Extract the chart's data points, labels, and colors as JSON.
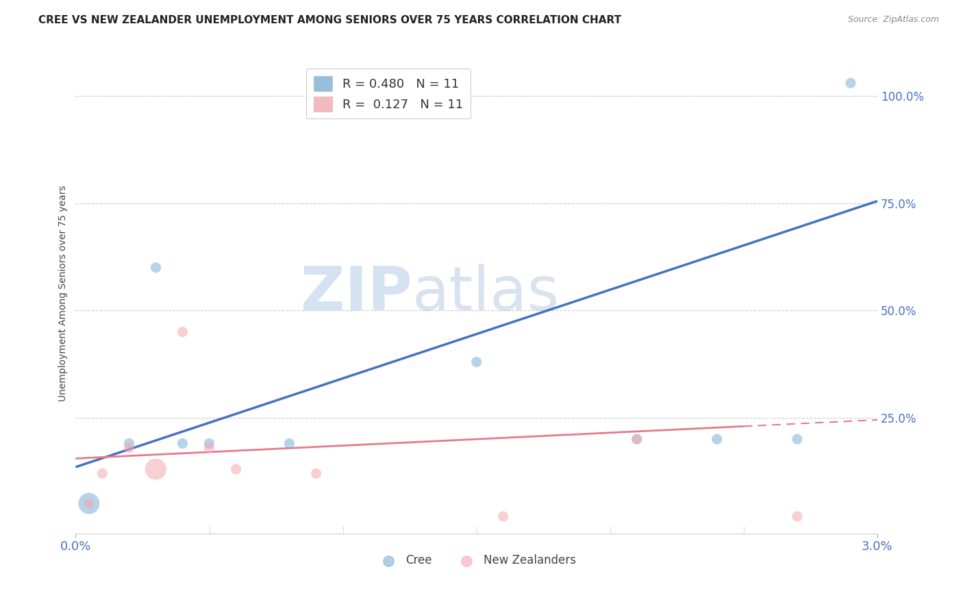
{
  "title": "CREE VS NEW ZEALANDER UNEMPLOYMENT AMONG SENIORS OVER 75 YEARS CORRELATION CHART",
  "source": "Source: ZipAtlas.com",
  "xlabel_color": "#4472c4",
  "ylabel": "Unemployment Among Seniors over 75 years",
  "xlim": [
    0.0,
    0.03
  ],
  "ylim": [
    -0.02,
    1.1
  ],
  "xtick_labels": [
    "0.0%",
    "3.0%"
  ],
  "xtick_vals": [
    0.0,
    0.03
  ],
  "ytick_labels": [
    "25.0%",
    "50.0%",
    "75.0%",
    "100.0%"
  ],
  "ytick_vals": [
    0.25,
    0.5,
    0.75,
    1.0
  ],
  "cree_color": "#7bafd4",
  "nz_color": "#f4a8b0",
  "cree_line_color": "#4472c4",
  "nz_line_color": "#e87a8a",
  "legend_cree_R": "R = 0.480",
  "legend_cree_N": "N = 11",
  "legend_nz_R": "R =  0.127",
  "legend_nz_N": "N = 11",
  "cree_x": [
    0.0005,
    0.002,
    0.003,
    0.004,
    0.005,
    0.008,
    0.015,
    0.021,
    0.024,
    0.027,
    0.029
  ],
  "cree_y": [
    0.05,
    0.19,
    0.6,
    0.19,
    0.19,
    0.19,
    0.38,
    0.2,
    0.2,
    0.2,
    1.03
  ],
  "cree_size": [
    500,
    120,
    120,
    120,
    120,
    120,
    120,
    120,
    120,
    120,
    120
  ],
  "nz_x": [
    0.0005,
    0.001,
    0.002,
    0.003,
    0.004,
    0.005,
    0.006,
    0.009,
    0.016,
    0.021,
    0.027
  ],
  "nz_y": [
    0.05,
    0.12,
    0.18,
    0.13,
    0.45,
    0.18,
    0.13,
    0.12,
    0.02,
    0.2,
    0.02
  ],
  "nz_size": [
    120,
    120,
    120,
    500,
    120,
    120,
    120,
    120,
    120,
    120,
    120
  ],
  "watermark_zip": "ZIP",
  "watermark_atlas": "atlas",
  "background_color": "#ffffff",
  "grid_color": "#cccccc",
  "cree_line_y0": 0.135,
  "cree_line_y1": 0.755,
  "nz_line_y0": 0.155,
  "nz_line_y1": 0.245
}
